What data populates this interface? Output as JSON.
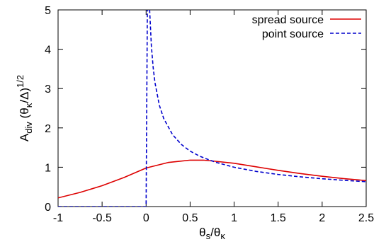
{
  "chart_data": {
    "type": "line",
    "title": "",
    "xlabel": "θs/θκ",
    "ylabel": "Adiv (θκ/Δ)1/2",
    "xlim": [
      -1,
      2.5
    ],
    "ylim": [
      0,
      5
    ],
    "x_ticks": [
      -1,
      -0.5,
      0,
      0.5,
      1,
      1.5,
      2,
      2.5
    ],
    "x_tick_labels": [
      "-1",
      "-0.5",
      "0",
      "0.5",
      "1",
      "1.5",
      "2",
      "2.5"
    ],
    "y_ticks": [
      0,
      1,
      2,
      3,
      4,
      5
    ],
    "y_tick_labels": [
      "0",
      "1",
      "2",
      "3",
      "4",
      "5"
    ],
    "grid": false,
    "legend_position": "top-right",
    "series": [
      {
        "name": "spread source",
        "color": "#dd0000",
        "dash": "solid",
        "x": [
          -1,
          -0.75,
          -0.5,
          -0.25,
          0,
          0.25,
          0.5,
          0.65,
          0.75,
          1,
          1.25,
          1.5,
          1.75,
          2,
          2.25,
          2.5
        ],
        "y": [
          0.22,
          0.36,
          0.53,
          0.74,
          0.98,
          1.12,
          1.18,
          1.18,
          1.16,
          1.1,
          1.01,
          0.92,
          0.84,
          0.77,
          0.71,
          0.66
        ]
      },
      {
        "name": "point source",
        "color": "#0000cc",
        "dash": "dashed",
        "x": [
          -1,
          -0.5,
          -0.02,
          0,
          0.02,
          0.04,
          0.06,
          0.08,
          0.1,
          0.15,
          0.2,
          0.3,
          0.4,
          0.5,
          0.6,
          0.7,
          0.8,
          1,
          1.25,
          1.5,
          1.75,
          2,
          2.25,
          2.5
        ],
        "y": [
          0,
          0,
          0,
          0,
          7.07,
          5.0,
          4.08,
          3.54,
          3.16,
          2.58,
          2.24,
          1.83,
          1.58,
          1.41,
          1.29,
          1.2,
          1.12,
          1.0,
          0.894,
          0.816,
          0.756,
          0.707,
          0.667,
          0.632
        ]
      }
    ]
  }
}
